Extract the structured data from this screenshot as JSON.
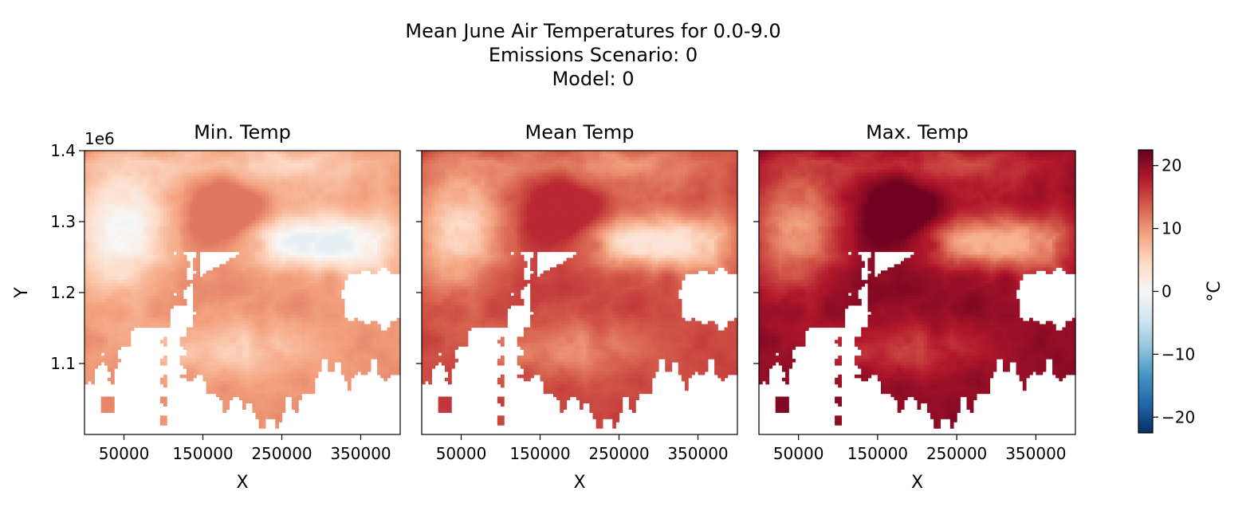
{
  "suptitle": [
    "Mean June Air Temperatures for 0.0-9.0",
    "Emissions Scenario: 0",
    "Model: 0"
  ],
  "colors": {
    "colormap": "RdBu_r",
    "stops": [
      "#053061",
      "#2166ac",
      "#4393c3",
      "#92c5de",
      "#d1e5f0",
      "#f7f7f7",
      "#fddbc7",
      "#f4a582",
      "#d6604d",
      "#b2182b",
      "#67001f"
    ],
    "no_data": "#ffffff"
  },
  "chart_data": [
    {
      "type": "heatmap",
      "title": "Min. Temp",
      "xlabel": "X",
      "ylabel": "Y",
      "xticks": [
        50000,
        150000,
        250000,
        350000
      ],
      "xtick_labels": [
        "50000",
        "150000",
        "250000",
        "350000"
      ],
      "yticks": [
        1100000,
        1200000,
        1300000,
        1400000
      ],
      "ytick_labels": [
        "1.1",
        "1.2",
        "1.3",
        "1.4"
      ],
      "y_offset_label": "1e6",
      "xlim": [
        0,
        400000
      ],
      "ylim": [
        1000000,
        1400000
      ],
      "value_range_approx": [
        -2,
        12
      ],
      "typical_value_approx": 9
    },
    {
      "type": "heatmap",
      "title": "Mean Temp",
      "xlabel": "X",
      "xticks": [
        50000,
        150000,
        250000,
        350000
      ],
      "xtick_labels": [
        "50000",
        "150000",
        "250000",
        "350000"
      ],
      "xlim": [
        0,
        400000
      ],
      "ylim": [
        1000000,
        1400000
      ],
      "value_range_approx": [
        3,
        17
      ],
      "typical_value_approx": 14
    },
    {
      "type": "heatmap",
      "title": "Max. Temp",
      "xlabel": "X",
      "xticks": [
        50000,
        150000,
        250000,
        350000
      ],
      "xtick_labels": [
        "50000",
        "150000",
        "250000",
        "350000"
      ],
      "xlim": [
        0,
        400000
      ],
      "ylim": [
        1000000,
        1400000
      ],
      "value_range_approx": [
        8,
        22
      ],
      "typical_value_approx": 19
    }
  ],
  "colorbar": {
    "label": "°C",
    "vmin": -22.5,
    "vmax": 22.5,
    "ticks": [
      20,
      10,
      0,
      -10,
      -20
    ],
    "tick_labels": [
      "20",
      "10",
      "0",
      "−10",
      "−20"
    ]
  }
}
